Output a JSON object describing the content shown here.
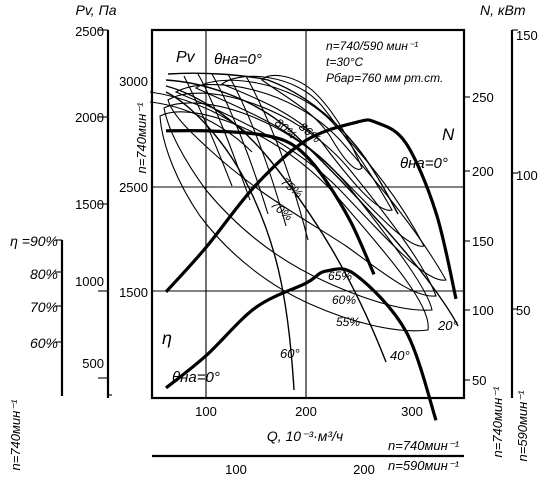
{
  "chart_data": {
    "type": "line",
    "title": "",
    "left_axis": {
      "label": "Pv, Па",
      "ticks": [
        "2500",
        "2000",
        "1500",
        "1000",
        "500"
      ],
      "rpm_label": "n=740мин⁻¹"
    },
    "left_axis_2": {
      "ticks": [
        "3000",
        "2500",
        "1500"
      ],
      "rpm_label": "n=740мин⁻¹"
    },
    "eta_axis": {
      "label": "η =90%",
      "ticks": [
        "80%",
        "70%",
        "60%"
      ]
    },
    "right_axis_2": {
      "label": "N, кВт",
      "ticks": [
        "250",
        "200",
        "150",
        "100",
        "50"
      ],
      "rpm_label": "n=740мин⁻¹"
    },
    "right_axis": {
      "ticks": [
        "150",
        "100",
        "50"
      ],
      "rpm_label": "n=590мин⁻¹"
    },
    "x_axis": {
      "label": "Q, 10⁻³·м³/ч",
      "ticks": [
        "100",
        "200",
        "300"
      ],
      "rpm_label": "n=740мин⁻¹"
    },
    "x_axis_2": {
      "ticks": [
        "100",
        "200"
      ],
      "rpm_label": "n=590мин⁻¹"
    },
    "info": [
      "n=740/590 мин⁻¹",
      "t=30°C",
      "Pбар=760 мм рт.ст."
    ],
    "curve_labels": {
      "pv": "Pv",
      "n": "N",
      "eta": "η",
      "theta_top": "θна=0°",
      "theta_n": "θна=0°",
      "theta_eta": "θна=0°",
      "eff_86": "86%",
      "eff_80": "80%",
      "eff_75": "75%",
      "eff_70": "70%",
      "eff_65": "65%",
      "eff_60": "60%",
      "eff_55": "55%",
      "angle_60": "60°",
      "angle_40": "40°",
      "angle_20": "20°"
    },
    "series": [
      {
        "name": "Pv",
        "unit": "Па",
        "x": [
          60,
          100,
          150,
          180,
          200,
          220,
          245,
          268
        ],
        "y": [
          2270,
          2270,
          2255,
          2220,
          2150,
          2030,
          1830,
          1580
        ]
      },
      {
        "name": "N",
        "unit": "кВт",
        "x": [
          60,
          100,
          150,
          200,
          250,
          270,
          300,
          330,
          350
        ],
        "y": [
          113,
          145,
          190,
          222,
          235,
          235,
          220,
          170,
          108
        ]
      },
      {
        "name": "η",
        "unit": "%",
        "x": [
          60,
          100,
          150,
          200,
          220,
          250,
          300,
          330
        ],
        "y": [
          51,
          55,
          61,
          64,
          65.5,
          65,
          58,
          47
        ]
      }
    ]
  }
}
